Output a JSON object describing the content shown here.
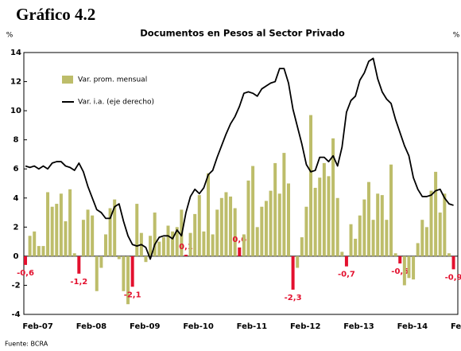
{
  "chart_data": {
    "type": "bar_line",
    "title": "Gráfico 4.2",
    "subtitle": "Documentos en Pesos al Sector Privado",
    "ylabel": "%",
    "y2label": "%",
    "source": "Fuente: BCRA",
    "categories": [
      null,
      "Feb-07",
      null,
      null,
      null,
      null,
      null,
      null,
      null,
      null,
      null,
      null,
      null,
      "Feb-08",
      null,
      null,
      null,
      null,
      null,
      null,
      null,
      null,
      null,
      null,
      null,
      "Feb-09",
      null,
      null,
      null,
      null,
      null,
      null,
      null,
      null,
      null,
      null,
      null,
      "Feb-10",
      null,
      null,
      null,
      null,
      null,
      null,
      null,
      null,
      null,
      null,
      null,
      "Feb-11",
      null,
      null,
      null,
      null,
      null,
      null,
      null,
      null,
      null,
      null,
      null,
      "Feb-12",
      null,
      null,
      null,
      null,
      null,
      null,
      null,
      null,
      null,
      null,
      null,
      "Feb-13",
      null,
      null,
      null,
      null,
      null,
      null,
      null,
      null,
      null,
      null,
      null,
      "Feb-14",
      null,
      null,
      null,
      null,
      null,
      null,
      null,
      null,
      null,
      null,
      null,
      "Feb-15"
    ],
    "series": [
      {
        "name": "Var. prom. mensual",
        "kind": "bar",
        "color": "#bdbd6a",
        "highlight_color": "#e3102e",
        "values": [
          -0.6,
          1.4,
          1.7,
          0.7,
          0.7,
          4.4,
          3.4,
          3.6,
          4.3,
          2.4,
          4.6,
          0.2,
          -1.2,
          2.5,
          3.2,
          2.8,
          -2.4,
          -0.8,
          1.5,
          3.3,
          3.9,
          -0.2,
          -2.4,
          -3.3,
          -2.1,
          3.6,
          1.6,
          -0.4,
          1.4,
          3.0,
          1.0,
          1.3,
          2.1,
          1.7,
          2.0,
          3.2,
          0.1,
          1.6,
          2.9,
          4.2,
          1.7,
          5.7,
          1.5,
          3.2,
          4.0,
          4.4,
          4.1,
          3.3,
          0.6,
          1.5,
          5.2,
          6.2,
          2.0,
          3.4,
          3.8,
          4.5,
          6.4,
          4.3,
          7.1,
          5.0,
          -2.3,
          -0.8,
          1.3,
          3.4,
          9.7,
          4.7,
          5.4,
          6.4,
          5.5,
          8.1,
          4.0,
          0.3,
          -0.7,
          2.2,
          1.2,
          2.8,
          3.9,
          5.1,
          2.5,
          4.3,
          4.2,
          2.5,
          6.3,
          0.2,
          -0.5,
          -2.0,
          -1.5,
          -1.6,
          0.9,
          2.5,
          2.0,
          4.5,
          5.8,
          3.0,
          4.3,
          0.2,
          -0.9,
          null
        ],
        "value_labels": [
          "-0,6",
          null,
          null,
          null,
          null,
          null,
          null,
          null,
          null,
          null,
          null,
          null,
          "-1,2",
          null,
          null,
          null,
          null,
          null,
          null,
          null,
          null,
          null,
          null,
          null,
          "-2,1",
          null,
          null,
          null,
          null,
          null,
          null,
          null,
          null,
          null,
          null,
          null,
          "0,1",
          null,
          null,
          null,
          null,
          null,
          null,
          null,
          null,
          null,
          null,
          null,
          "0,6",
          null,
          null,
          null,
          null,
          null,
          null,
          null,
          null,
          null,
          null,
          null,
          "-2,3",
          null,
          null,
          null,
          null,
          null,
          null,
          null,
          null,
          null,
          null,
          null,
          "-0,7",
          null,
          null,
          null,
          null,
          null,
          null,
          null,
          null,
          null,
          null,
          null,
          "-0,5",
          null,
          null,
          null,
          null,
          null,
          null,
          null,
          null,
          null,
          null,
          null,
          "-0,9",
          null
        ]
      },
      {
        "name": "Var. i.a. (eje derecho)",
        "kind": "line",
        "axis": "y2",
        "color": "#000000",
        "values": [
          6.2,
          6.1,
          6.2,
          6.0,
          6.2,
          6.0,
          6.4,
          6.5,
          6.5,
          6.2,
          6.1,
          5.9,
          6.4,
          5.8,
          4.8,
          4.0,
          3.2,
          3.0,
          2.6,
          2.6,
          3.4,
          3.6,
          2.4,
          1.4,
          0.8,
          0.7,
          0.8,
          0.6,
          -0.2,
          0.8,
          1.3,
          1.4,
          1.4,
          1.2,
          1.8,
          1.4,
          3.0,
          4.1,
          4.6,
          4.3,
          4.7,
          5.6,
          5.9,
          6.8,
          7.6,
          8.4,
          9.1,
          9.6,
          10.3,
          11.2,
          11.3,
          11.2,
          11.0,
          11.5,
          11.7,
          11.9,
          12.0,
          12.9,
          12.9,
          11.9,
          10.1,
          8.9,
          7.7,
          6.3,
          5.8,
          5.9,
          6.8,
          6.8,
          6.5,
          6.9,
          6.2,
          7.5,
          9.9,
          10.7,
          11.0,
          12.1,
          12.6,
          13.4,
          13.6,
          12.2,
          11.3,
          10.8,
          10.5,
          9.4,
          8.5,
          7.6,
          6.9,
          5.4,
          4.6,
          4.1,
          4.1,
          4.2,
          4.5,
          4.6,
          4.0,
          3.6,
          3.5,
          null
        ]
      }
    ],
    "ylim": [
      -4,
      14
    ],
    "yticks": [
      -4,
      -2,
      0,
      2,
      4,
      6,
      8,
      10,
      12,
      14
    ],
    "y2lim": [
      -4,
      14
    ],
    "legend": "upper left"
  }
}
